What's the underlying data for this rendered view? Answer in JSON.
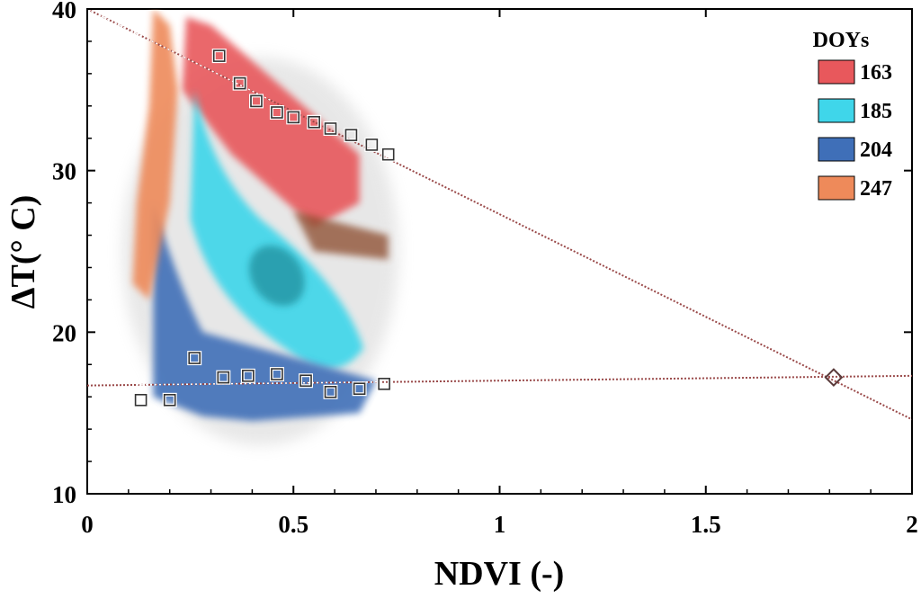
{
  "chart_data": {
    "type": "scatter",
    "title": "",
    "xlabel": "NDVI (-)",
    "ylabel": "ΔT(° C)",
    "xlim": [
      0,
      2
    ],
    "ylim": [
      10,
      40
    ],
    "x_ticks": [
      "0",
      "0.5",
      "1",
      "1.5",
      "2"
    ],
    "y_ticks": [
      "10",
      "20",
      "30",
      "40"
    ],
    "grid": false,
    "legend": {
      "title": "DOYs",
      "placement": "top-right",
      "entries": [
        {
          "label": "163",
          "color": "#e8585c"
        },
        {
          "label": "185",
          "color": "#3fd6ea"
        },
        {
          "label": "204",
          "color": "#3f6fb8"
        },
        {
          "label": "247",
          "color": "#ee8a5a"
        }
      ]
    },
    "series": [
      {
        "name": "163",
        "kind": "density-cloud",
        "color": "#e8585c",
        "x_range": [
          0.22,
          0.75
        ],
        "y_range": [
          25,
          40
        ]
      },
      {
        "name": "185",
        "kind": "density-cloud",
        "color": "#3fd6ea",
        "x_range": [
          0.23,
          0.68
        ],
        "y_range": [
          17,
          36
        ],
        "center": [
          0.46,
          23.5
        ]
      },
      {
        "name": "204",
        "kind": "density-cloud",
        "color": "#3f6fb8",
        "x_range": [
          0.15,
          0.7
        ],
        "y_range": [
          14.5,
          28
        ]
      },
      {
        "name": "247",
        "kind": "density-cloud",
        "color": "#ee8a5a",
        "x_range": [
          0.1,
          0.75
        ],
        "y_range": [
          22,
          40
        ]
      }
    ],
    "dry_edge_points": {
      "x": [
        0.32,
        0.37,
        0.41,
        0.46,
        0.5,
        0.55,
        0.59,
        0.64,
        0.69,
        0.73
      ],
      "y": [
        37.1,
        35.4,
        34.3,
        33.6,
        33.3,
        33.0,
        32.6,
        32.2,
        31.6,
        31.0
      ]
    },
    "wet_edge_points": {
      "x": [
        0.13,
        0.2,
        0.26,
        0.33,
        0.39,
        0.46,
        0.53,
        0.59,
        0.66,
        0.72
      ],
      "y": [
        15.8,
        15.8,
        18.4,
        17.2,
        17.3,
        17.4,
        17.0,
        16.3,
        16.5,
        16.8
      ]
    },
    "dry_edge_line": {
      "x": [
        0,
        2
      ],
      "y": [
        40,
        14.6
      ]
    },
    "wet_edge_line": {
      "x": [
        0,
        2
      ],
      "y": [
        16.7,
        17.3
      ]
    },
    "intersection": {
      "x": 1.81,
      "y": 17.2
    }
  }
}
